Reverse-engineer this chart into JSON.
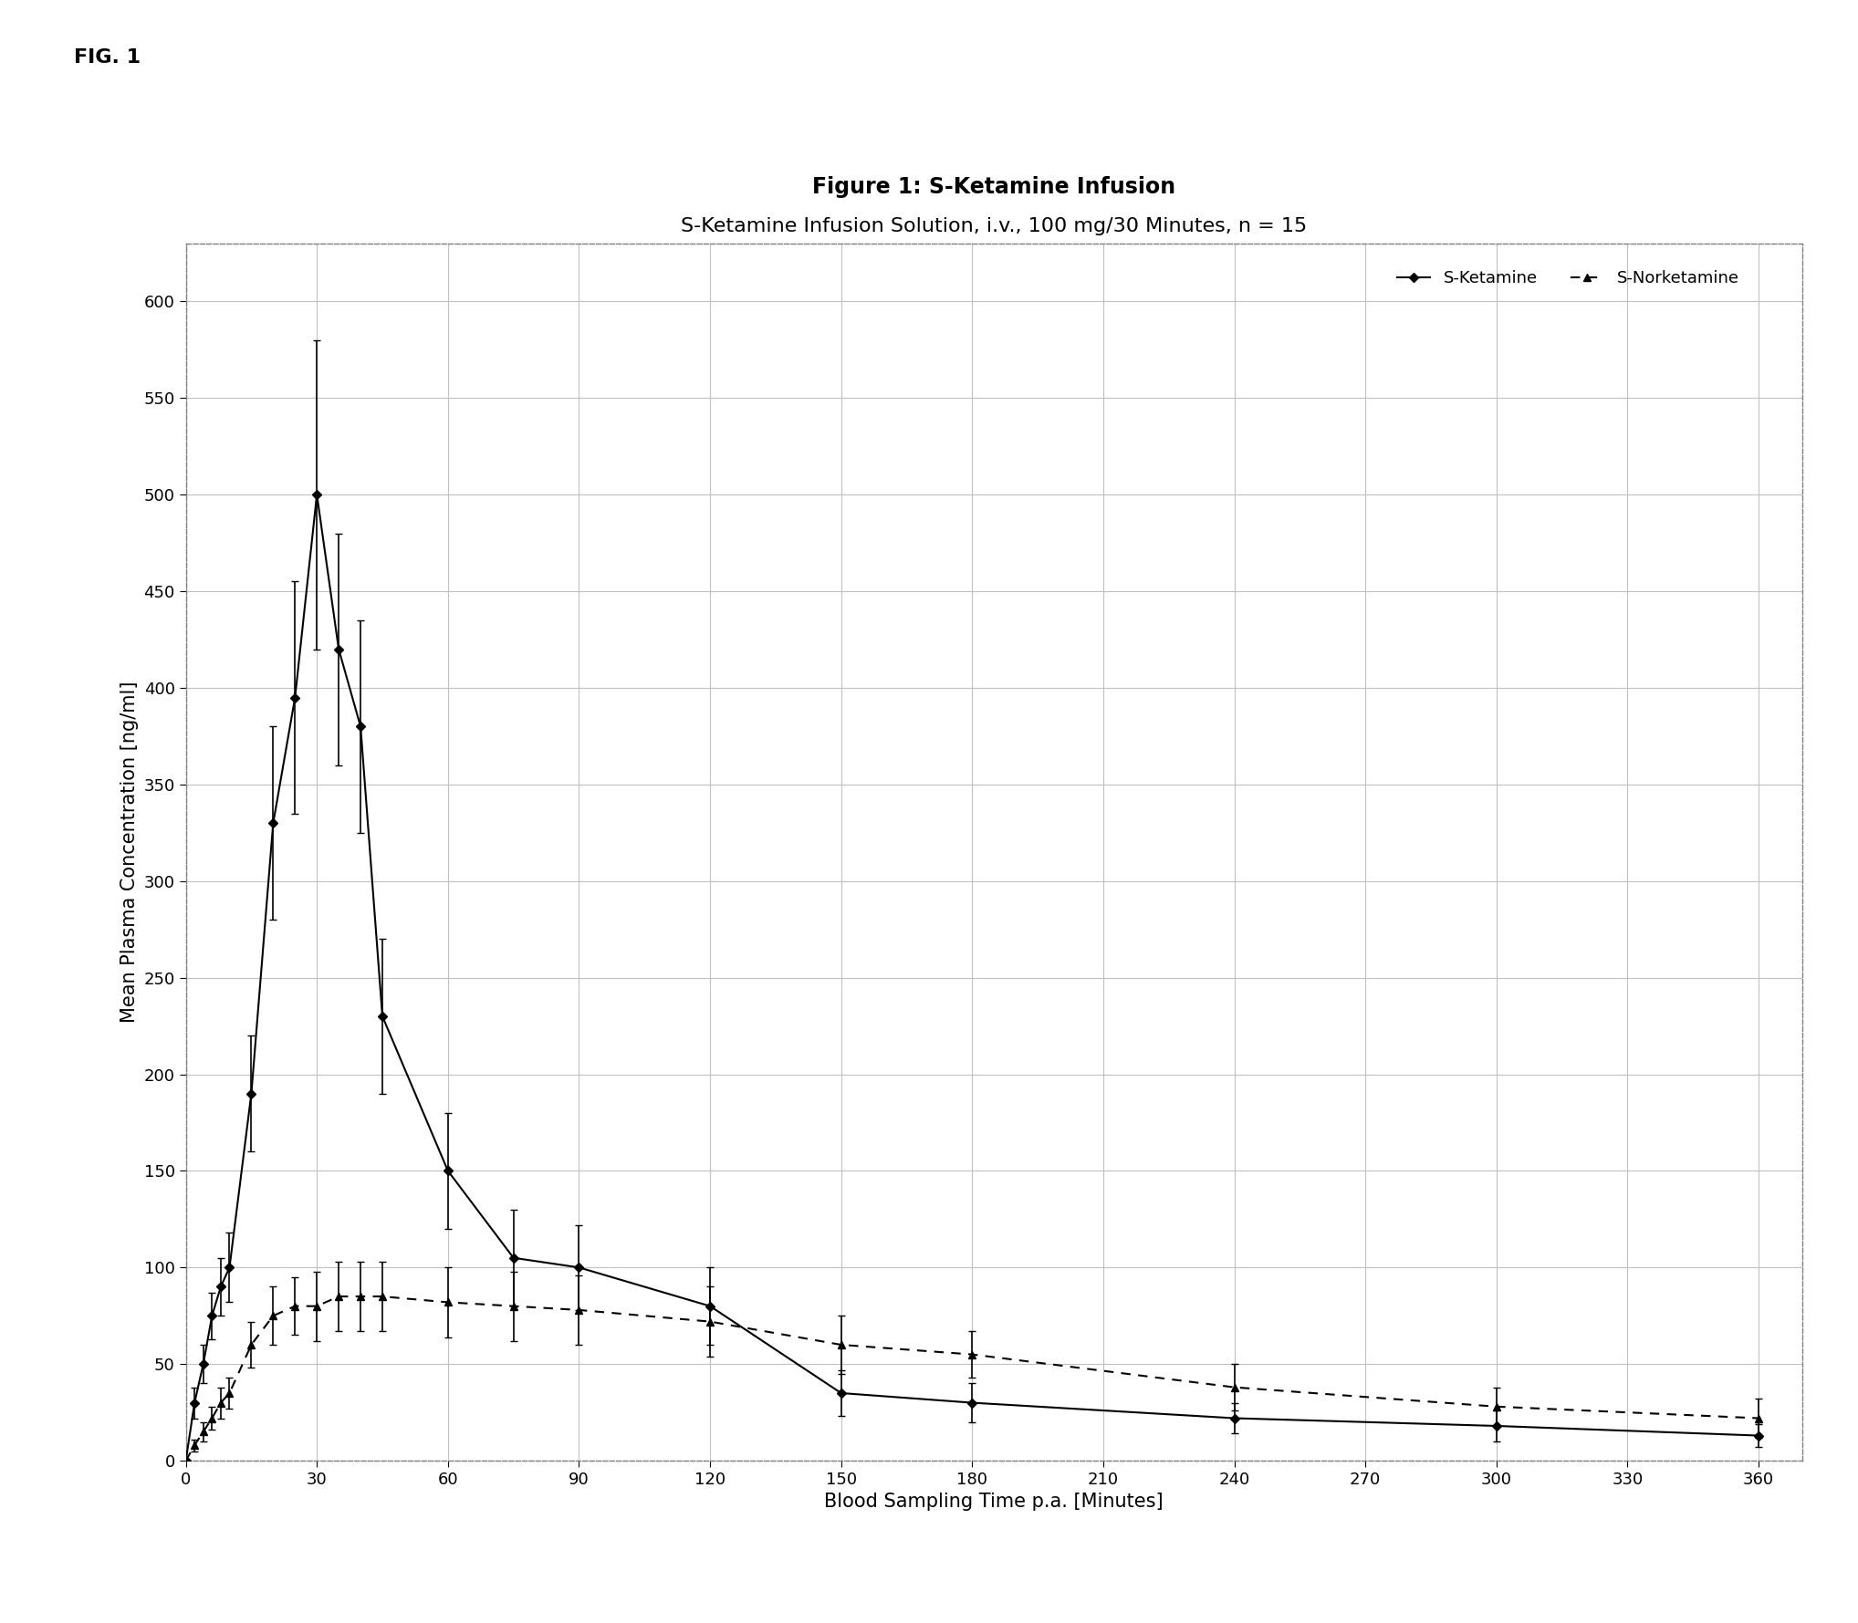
{
  "title_line1": "Figure 1: S-Ketamine Infusion",
  "title_line2": "S-Ketamine Infusion Solution, i.v., 100 mg/30 Minutes, n = 15",
  "xlabel": "Blood Sampling Time p.a. [Minutes]",
  "ylabel": "Mean Plasma Concentration [ng/ml]",
  "fig_label": "FIG. 1",
  "sket_x": [
    0,
    2,
    4,
    6,
    8,
    10,
    15,
    20,
    25,
    30,
    35,
    40,
    45,
    60,
    75,
    90,
    120,
    150,
    180,
    240,
    300,
    360
  ],
  "sket_y": [
    0,
    30,
    50,
    75,
    90,
    100,
    190,
    330,
    395,
    500,
    420,
    380,
    230,
    150,
    105,
    100,
    80,
    35,
    30,
    22,
    18,
    13
  ],
  "sket_yerr": [
    0,
    8,
    10,
    12,
    15,
    18,
    30,
    50,
    60,
    80,
    60,
    55,
    40,
    30,
    25,
    22,
    20,
    12,
    10,
    8,
    8,
    6
  ],
  "snket_x": [
    0,
    2,
    4,
    6,
    8,
    10,
    15,
    20,
    25,
    30,
    35,
    40,
    45,
    60,
    75,
    90,
    120,
    150,
    180,
    240,
    300,
    360
  ],
  "snket_y": [
    0,
    8,
    15,
    22,
    30,
    35,
    60,
    75,
    80,
    80,
    85,
    85,
    85,
    82,
    80,
    78,
    72,
    60,
    55,
    38,
    28,
    22
  ],
  "snket_yerr": [
    0,
    3,
    5,
    6,
    8,
    8,
    12,
    15,
    15,
    18,
    18,
    18,
    18,
    18,
    18,
    18,
    18,
    15,
    12,
    12,
    10,
    10
  ],
  "xlim": [
    0,
    370
  ],
  "ylim": [
    0,
    630
  ],
  "xticks": [
    0,
    30,
    60,
    90,
    120,
    150,
    180,
    210,
    240,
    270,
    300,
    330,
    360
  ],
  "yticks": [
    0,
    50,
    100,
    150,
    200,
    250,
    300,
    350,
    400,
    450,
    500,
    550,
    600
  ],
  "sket_color": "#000000",
  "snket_color": "#000000",
  "background_color": "#ffffff",
  "plot_bg_color": "#ffffff",
  "grid_color": "#c0c0c0",
  "legend_sket": "S-Ketamine",
  "legend_snket": "S-Norketamine",
  "title_fontsize": 17,
  "subtitle_fontsize": 16,
  "axis_label_fontsize": 15,
  "tick_fontsize": 13,
  "legend_fontsize": 13
}
